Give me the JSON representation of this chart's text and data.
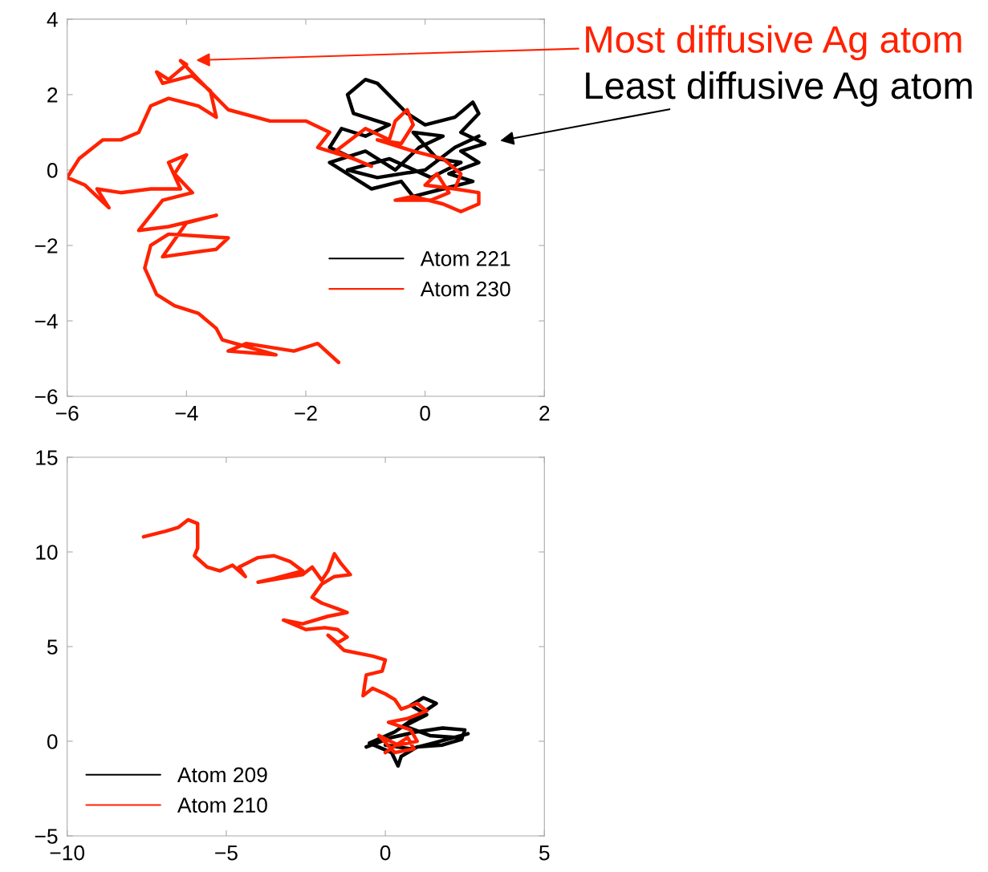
{
  "chart_data": [
    {
      "type": "line",
      "xlim": [
        -6,
        2
      ],
      "ylim": [
        -6,
        4
      ],
      "xticks": [
        {
          "value": -6,
          "label": "−6"
        },
        {
          "value": -4,
          "label": "−4"
        },
        {
          "value": -2,
          "label": "−2"
        },
        0,
        2
      ],
      "yticks": [
        {
          "value": -6,
          "label": "−6"
        },
        {
          "value": -4,
          "label": "−4"
        },
        {
          "value": -2,
          "label": "−2"
        },
        0,
        2,
        4
      ],
      "grid": false,
      "legend": "right",
      "marker": "none",
      "line_style": "solid",
      "series": [
        {
          "name": "Atom 221",
          "color": "#000000",
          "x": [
            -1.2,
            -1.6,
            -1.4,
            -1.0,
            -0.6,
            -1.2,
            -1.3,
            -1.0,
            -0.8,
            -0.3,
            0.0,
            0.5,
            0.8,
            0.9,
            0.6,
            1.0,
            0.6,
            0.9,
            0.4,
            0.8,
            0.3,
            -0.2,
            -0.4,
            -0.9,
            -1.2,
            -1.6,
            -1.0,
            -0.5,
            -0.1,
            0.3,
            -0.2,
            0.2,
            0.6,
            0.1,
            -0.6,
            -1.3,
            -0.8,
            0.0,
            0.5,
            0.9
          ],
          "values": [
            0.3,
            0.6,
            1.1,
            0.9,
            1.2,
            1.5,
            2.0,
            2.4,
            2.3,
            1.5,
            1.2,
            1.4,
            1.8,
            1.5,
            1.0,
            0.7,
            0.5,
            0.2,
            -0.1,
            -0.3,
            -0.5,
            -0.7,
            -0.3,
            -0.5,
            -0.2,
            0.2,
            0.5,
            0.0,
            0.6,
            0.9,
            1.0,
            0.3,
            0.2,
            -0.2,
            0.3,
            0.0,
            -0.2,
            0.0,
            0.6,
            0.9
          ]
        },
        {
          "name": "Atom 230",
          "color": "#ff2200",
          "x": [
            -1.45,
            -1.8,
            -2.2,
            -2.6,
            -3.0,
            -3.3,
            -2.5,
            -3.4,
            -3.5,
            -3.8,
            -4.2,
            -4.5,
            -4.7,
            -4.6,
            -4.3,
            -3.3,
            -3.5,
            -4.4,
            -4.0,
            -3.5,
            -4.3,
            -4.8,
            -4.4,
            -3.9,
            -4.2,
            -4.0,
            -4.3,
            -4.1,
            -4.6,
            -5.1,
            -5.5,
            -5.3,
            -5.7,
            -6.0,
            -5.8,
            -5.4,
            -5.1,
            -4.8,
            -4.6,
            -4.3,
            -3.8,
            -3.5,
            -3.6,
            -3.9,
            -4.4,
            -4.5,
            -4.3,
            -4.0,
            -4.1,
            -3.8,
            -3.3,
            -2.6,
            -2.0,
            -1.6,
            -1.8,
            -1.2,
            -0.9,
            -1.5,
            -1.0,
            -0.6,
            -0.5,
            -0.3,
            -0.2,
            -0.4,
            -0.8,
            -0.2,
            0.3,
            0.6,
            0.5,
            0.0,
            0.2,
            0.4,
            0.1,
            -0.5,
            -0.2,
            0.3,
            0.6,
            0.9,
            0.9,
            0.5
          ],
          "values": [
            -5.1,
            -4.6,
            -4.8,
            -4.7,
            -4.6,
            -4.8,
            -4.9,
            -4.5,
            -4.2,
            -3.8,
            -3.6,
            -3.3,
            -2.6,
            -2.0,
            -1.7,
            -1.8,
            -2.1,
            -2.3,
            -1.4,
            -1.2,
            -1.5,
            -1.6,
            -0.8,
            -0.6,
            -0.1,
            0.4,
            0.2,
            -0.5,
            -0.5,
            -0.6,
            -0.5,
            -1.0,
            -0.4,
            -0.2,
            0.3,
            0.8,
            0.8,
            1.0,
            1.7,
            1.9,
            1.7,
            1.4,
            2.1,
            2.5,
            2.3,
            2.6,
            2.4,
            2.8,
            2.9,
            2.4,
            1.6,
            1.3,
            1.3,
            1.0,
            0.6,
            0.3,
            0.1,
            0.5,
            1.1,
            0.8,
            1.3,
            1.6,
            1.2,
            0.7,
            0.8,
            0.5,
            0.3,
            -0.1,
            -0.5,
            -0.4,
            -0.1,
            -0.6,
            -0.8,
            -0.8,
            -0.7,
            -0.9,
            -1.1,
            -0.9,
            -0.6,
            -0.5
          ]
        }
      ],
      "annotations": [
        "Most diffusive Ag atom",
        "Least diffusive Ag atom"
      ]
    },
    {
      "type": "line",
      "xlim": [
        -10,
        5
      ],
      "ylim": [
        -5,
        15
      ],
      "xticks": [
        {
          "value": -10,
          "label": "−10"
        },
        {
          "value": -5,
          "label": "−5"
        },
        0,
        5
      ],
      "yticks": [
        {
          "value": -5,
          "label": "−5"
        },
        0,
        5,
        10,
        15
      ],
      "grid": false,
      "legend": "lower left",
      "marker": "none",
      "line_style": "solid",
      "series": [
        {
          "name": "Atom 209",
          "color": "#000000",
          "x": [
            -0.6,
            0.2,
            1.0,
            1.8,
            2.5,
            2.4,
            1.8,
            1.0,
            0.5,
            0.4,
            0.2,
            -0.5,
            0.3,
            0.9,
            1.6,
            1.2,
            0.8,
            1.3,
            0.6,
            1.4,
            2.2,
            2.6,
            1.5,
            0.8,
            0.0
          ],
          "values": [
            -0.3,
            0.2,
            0.5,
            0.7,
            0.6,
            0.1,
            -0.2,
            -0.3,
            -0.8,
            -1.3,
            -0.6,
            -0.1,
            0.5,
            1.2,
            2.0,
            2.3,
            1.9,
            1.4,
            0.8,
            0.3,
            0.2,
            0.4,
            -0.1,
            -0.4,
            -0.2
          ]
        },
        {
          "name": "Atom 210",
          "color": "#ff2200",
          "x": [
            -7.6,
            -6.9,
            -6.5,
            -6.2,
            -5.9,
            -5.9,
            -6.0,
            -5.6,
            -5.2,
            -4.8,
            -4.4,
            -4.6,
            -4.0,
            -3.5,
            -3.0,
            -2.6,
            -3.5,
            -4.0,
            -2.6,
            -2.3,
            -2.0,
            -1.8,
            -1.6,
            -1.4,
            -1.1,
            -1.6,
            -2.0,
            -2.3,
            -2.0,
            -1.5,
            -1.2,
            -1.8,
            -2.6,
            -3.2,
            -2.5,
            -1.9,
            -1.5,
            -1.2,
            -1.5,
            -1.8,
            -1.3,
            -0.4,
            0.0,
            -0.1,
            -0.6,
            -0.7,
            -0.4,
            0.0,
            0.3,
            0.5,
            1.0,
            1.3,
            0.7,
            0.1,
            0.8,
            1.0,
            0.4,
            -0.2,
            0.3,
            0.9,
            0.7,
            0.0
          ],
          "values": [
            10.8,
            11.1,
            11.3,
            11.7,
            11.5,
            10.2,
            9.8,
            9.2,
            9.0,
            9.3,
            8.7,
            9.2,
            9.7,
            9.8,
            9.5,
            9.0,
            8.6,
            8.4,
            8.8,
            9.2,
            8.5,
            9.0,
            9.9,
            9.4,
            8.8,
            8.7,
            8.3,
            7.6,
            7.3,
            7.0,
            6.8,
            6.6,
            6.2,
            6.4,
            5.9,
            6.0,
            5.9,
            5.5,
            5.2,
            5.6,
            4.8,
            4.5,
            4.3,
            3.7,
            3.5,
            2.4,
            2.8,
            2.5,
            2.2,
            1.7,
            2.0,
            1.6,
            1.2,
            1.0,
            0.6,
            0.0,
            -0.2,
            0.3,
            -0.6,
            -0.4,
            0.2,
            -0.6
          ]
        }
      ]
    }
  ]
}
